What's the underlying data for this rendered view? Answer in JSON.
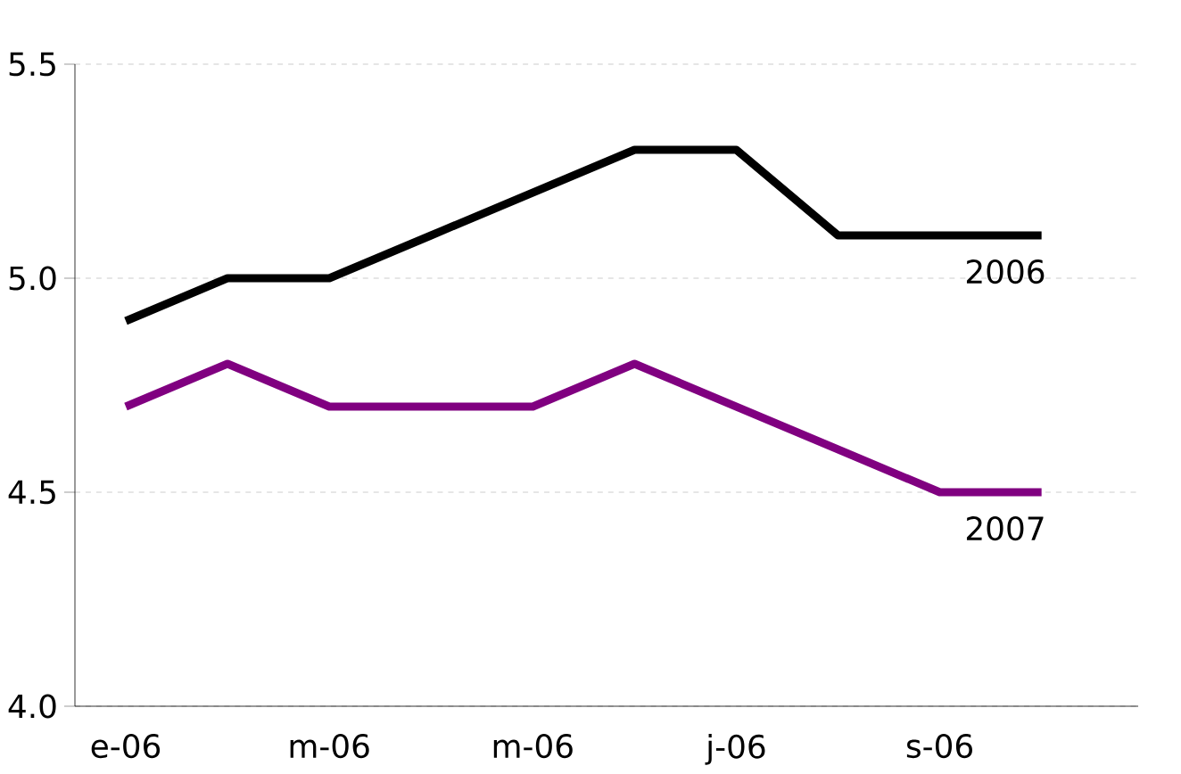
{
  "chart_data": {
    "type": "line",
    "categories": [
      "e-06",
      null,
      "m-06",
      null,
      "m-06",
      null,
      "j-06",
      null,
      "s-06",
      null
    ],
    "series": [
      {
        "name": "2006",
        "color": "#000000",
        "values": [
          4.9,
          5.0,
          5.0,
          5.1,
          5.2,
          5.3,
          5.3,
          5.1,
          5.1,
          5.1
        ]
      },
      {
        "name": "2007",
        "color": "#800080",
        "values": [
          4.7,
          4.8,
          4.7,
          4.7,
          4.7,
          4.8,
          4.7,
          4.6,
          4.5,
          4.5
        ]
      }
    ],
    "ylim": [
      4.0,
      5.5
    ],
    "yticks": [
      {
        "value": 4.0,
        "label": "4.0"
      },
      {
        "value": 4.5,
        "label": "4.5"
      },
      {
        "value": 5.0,
        "label": "5.0"
      },
      {
        "value": 5.5,
        "label": "5.5"
      }
    ],
    "grid": "y",
    "line_style": "solid"
  }
}
